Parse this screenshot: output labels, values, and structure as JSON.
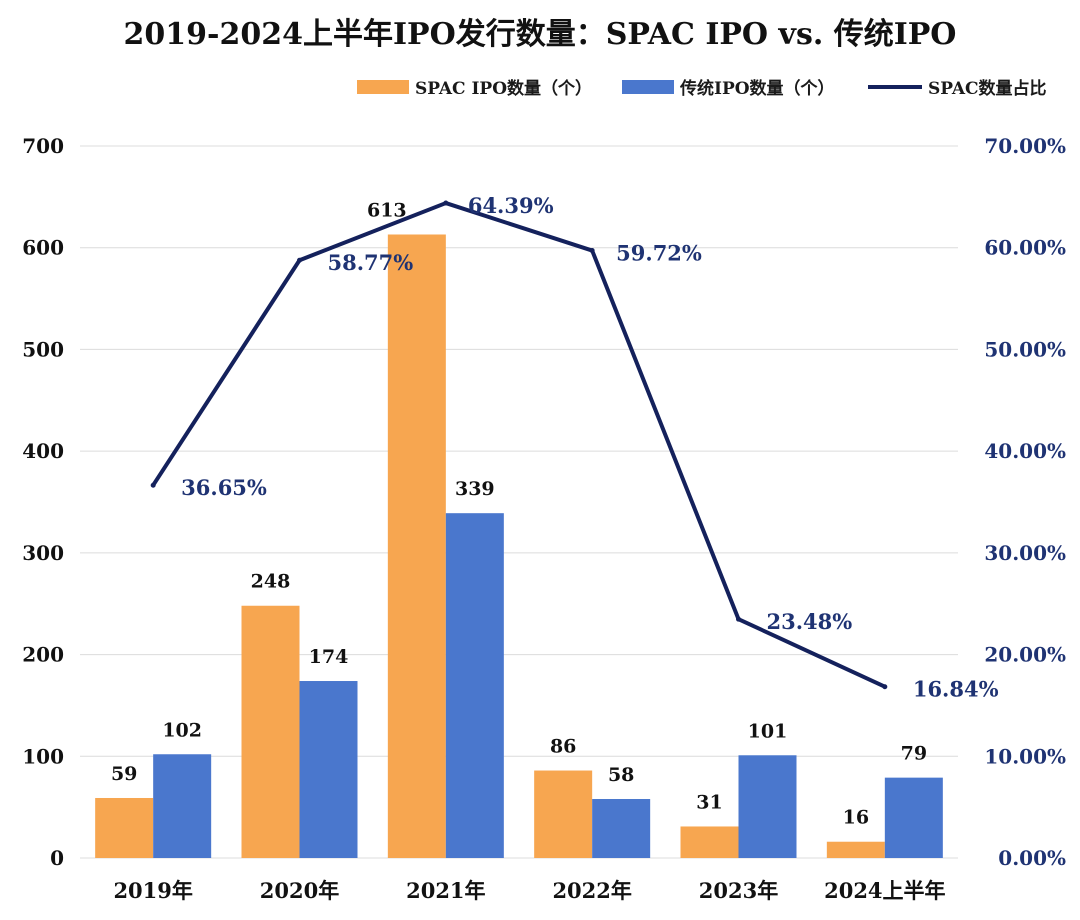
{
  "chart_data": {
    "type": "bar",
    "title": "2019-2024上半年IPO发行数量：SPAC IPO vs. 传统IPO",
    "categories": [
      "2019年",
      "2020年",
      "2021年",
      "2022年",
      "2023年",
      "2024上半年"
    ],
    "series": [
      {
        "name": "SPAC IPO数量（个）",
        "type": "bar",
        "axis": "left",
        "color": "#f7a650",
        "values": [
          59,
          248,
          613,
          86,
          31,
          16
        ],
        "labels": [
          "59",
          "248",
          "613",
          "86",
          "31",
          "16"
        ]
      },
      {
        "name": "传统IPO数量（个）",
        "type": "bar",
        "axis": "left",
        "color": "#4a77cd",
        "values": [
          102,
          174,
          339,
          58,
          101,
          79
        ],
        "labels": [
          "102",
          "174",
          "339",
          "58",
          "101",
          "79"
        ]
      },
      {
        "name": "SPAC数量占比",
        "type": "line",
        "axis": "right",
        "color": "#14215c",
        "values": [
          36.65,
          58.77,
          64.39,
          59.72,
          23.48,
          16.84
        ],
        "labels": [
          "36.65%",
          "58.77%",
          "64.39%",
          "59.72%",
          "23.48%",
          "16.84%"
        ]
      }
    ],
    "y_left": {
      "min": 0,
      "max": 700,
      "ticks": [
        "0",
        "100",
        "200",
        "300",
        "400",
        "500",
        "600",
        "700"
      ]
    },
    "y_right": {
      "min": 0,
      "max": 70,
      "ticks": [
        "0.00%",
        "10.00%",
        "20.00%",
        "30.00%",
        "40.00%",
        "50.00%",
        "60.00%",
        "70.00%"
      ]
    },
    "grid": true,
    "legend_position": "top-right"
  }
}
